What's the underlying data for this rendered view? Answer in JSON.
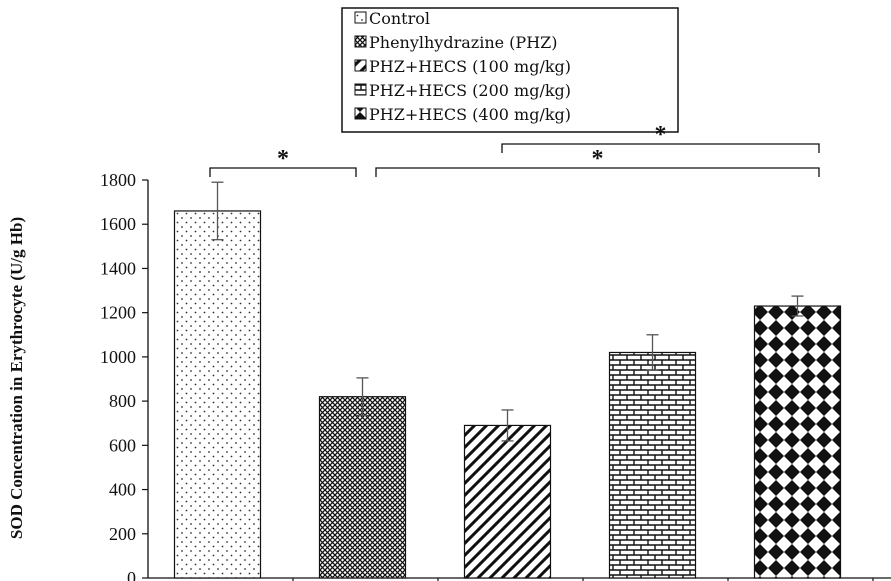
{
  "chart_data": {
    "type": "bar",
    "title": "",
    "xlabel": "",
    "ylabel": "SOD Concentration in Erythrocyte (U/g Hb)",
    "ylim": [
      0,
      1800
    ],
    "yticks": [
      0,
      200,
      400,
      600,
      800,
      1000,
      1200,
      1400,
      1600,
      1800
    ],
    "grid": false,
    "legend_position": "top-center",
    "categories": [
      "Control",
      "Phenylhydrazine (PHZ)",
      "PHZ+HECS (100 mg/kg)",
      "PHZ+HECS (200 mg/kg)",
      "PHZ+HECS (400 mg/kg)"
    ],
    "values": [
      1660,
      820,
      690,
      1020,
      1230
    ],
    "errors": [
      130,
      85,
      70,
      80,
      45
    ],
    "patterns": [
      "dots",
      "crosshatch",
      "diagonal",
      "brick",
      "diamond"
    ],
    "significance": [
      {
        "from": 0,
        "to": 1,
        "label": "*"
      },
      {
        "from": 2,
        "to": 4,
        "label": "*"
      },
      {
        "from": 1,
        "to": 4,
        "label": "*"
      }
    ]
  }
}
